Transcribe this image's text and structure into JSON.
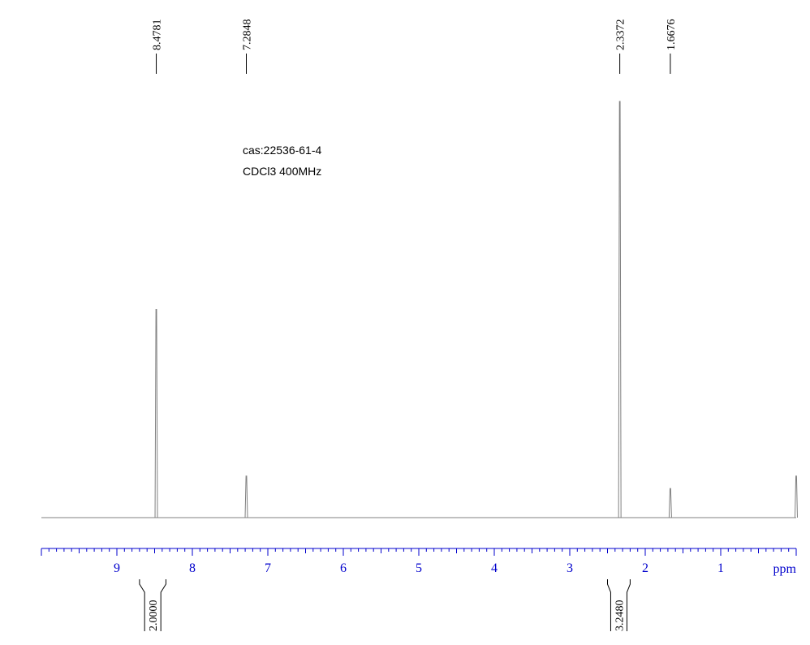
{
  "annotations": {
    "cas": "cas:22536-61-4",
    "solvent_freq": "CDCl3   400MHz"
  },
  "colors": {
    "spectrum": "#808080",
    "axis": "#0000cc",
    "text": "#000000"
  },
  "chart_data": {
    "type": "line",
    "title": "",
    "xlabel": "ppm",
    "ylabel": "",
    "x_axis": {
      "range": [
        10.0,
        0.0
      ],
      "reversed": true,
      "major_ticks": [
        9,
        8,
        7,
        6,
        5,
        4,
        3,
        2,
        1
      ],
      "minor_step": 0.1
    },
    "peaks": [
      {
        "ppm": 8.4781,
        "label": "8.4781",
        "intensity": 0.5
      },
      {
        "ppm": 7.2848,
        "label": "7.2848",
        "intensity": 0.1
      },
      {
        "ppm": 2.3372,
        "label": "2.3372",
        "intensity": 1.0
      },
      {
        "ppm": 1.6676,
        "label": "1.6676",
        "intensity": 0.07
      },
      {
        "ppm": 0.0,
        "label": "",
        "intensity": 0.1
      }
    ],
    "integrals": [
      {
        "from": 8.7,
        "to": 8.35,
        "value": "2.0000"
      },
      {
        "from": 2.5,
        "to": 2.2,
        "value": "3.2480"
      }
    ],
    "grid": false,
    "legend": "none"
  }
}
